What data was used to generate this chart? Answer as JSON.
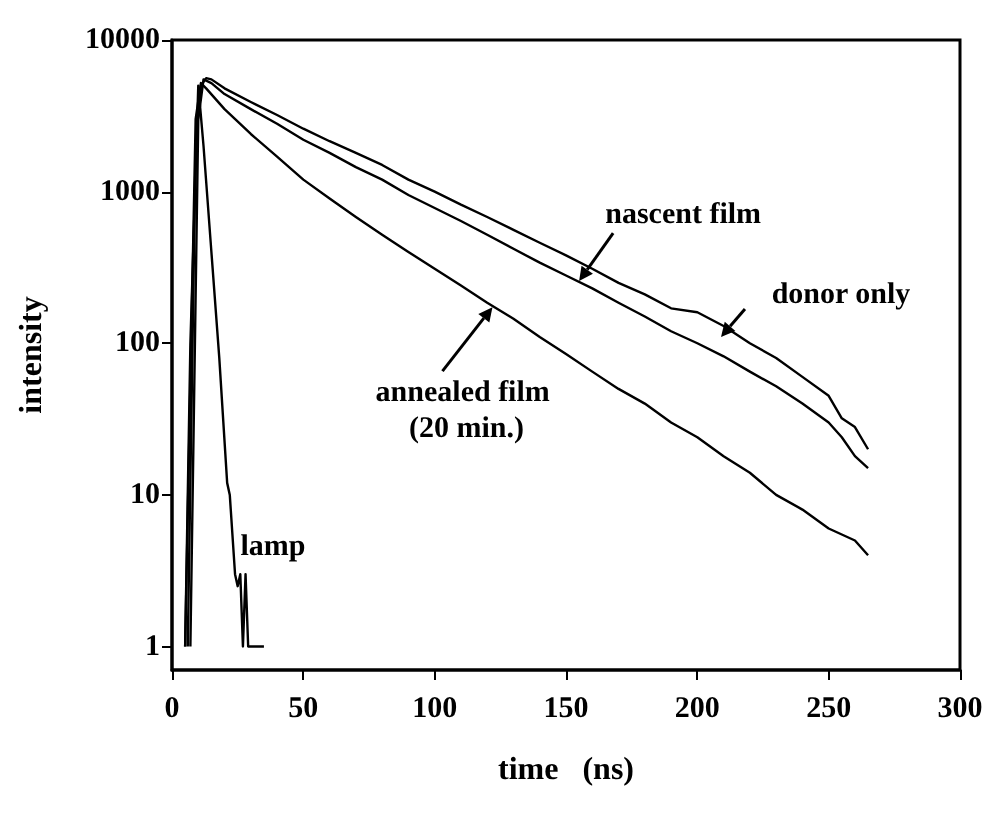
{
  "chart_data": {
    "type": "line",
    "xlabel": "time   (ns)",
    "ylabel": "intensity",
    "log": "y",
    "xlim": [
      0,
      300
    ],
    "xticks": [
      0,
      50,
      100,
      150,
      200,
      250,
      300
    ],
    "ylim": [
      0.7,
      10000
    ],
    "yticks": [
      1,
      10,
      100,
      1000,
      10000
    ],
    "grid": false,
    "marker": "none",
    "line_style": "solid",
    "series": [
      {
        "color": "#000000",
        "x": [
          6,
          9,
          11,
          13,
          15,
          20,
          30,
          40,
          50,
          60,
          70,
          80,
          90,
          100,
          110,
          120,
          130,
          140,
          150,
          160,
          170,
          180,
          190,
          200,
          210,
          220,
          230,
          240,
          250,
          255,
          260,
          265
        ],
        "values": [
          1,
          2000,
          5000,
          5600,
          5500,
          4800,
          3900,
          3200,
          2600,
          2150,
          1800,
          1500,
          1200,
          1000,
          820,
          680,
          560,
          460,
          380,
          310,
          250,
          210,
          170,
          160,
          130,
          100,
          80,
          60,
          45,
          32,
          28,
          20
        ]
      },
      {
        "color": "#000000",
        "x": [
          7,
          10,
          12,
          15,
          20,
          30,
          40,
          50,
          60,
          70,
          80,
          90,
          100,
          110,
          120,
          130,
          140,
          150,
          160,
          170,
          180,
          190,
          200,
          210,
          220,
          230,
          240,
          250,
          255,
          260,
          265
        ],
        "values": [
          1,
          3000,
          5500,
          5200,
          4400,
          3500,
          2800,
          2200,
          1800,
          1450,
          1200,
          950,
          780,
          640,
          520,
          420,
          340,
          280,
          230,
          185,
          150,
          120,
          100,
          82,
          65,
          52,
          40,
          30,
          24,
          18,
          15
        ]
      },
      {
        "color": "#000000",
        "x": [
          5,
          9,
          11,
          13,
          20,
          30,
          40,
          50,
          60,
          70,
          80,
          90,
          100,
          110,
          120,
          130,
          140,
          150,
          160,
          170,
          180,
          190,
          200,
          210,
          220,
          230,
          240,
          250,
          260,
          265
        ],
        "values": [
          1,
          3000,
          5200,
          4800,
          3500,
          2400,
          1700,
          1200,
          900,
          680,
          520,
          400,
          310,
          240,
          185,
          145,
          110,
          85,
          65,
          50,
          40,
          30,
          24,
          18,
          14,
          10,
          8,
          6,
          5,
          4
        ]
      },
      {
        "color": "#000000",
        "x": [
          5,
          7,
          10,
          12,
          15,
          18,
          21,
          22,
          24,
          25,
          26,
          27,
          28,
          29,
          35
        ],
        "values": [
          1,
          100,
          5000,
          2000,
          400,
          80,
          12,
          10,
          3,
          2.5,
          3,
          1,
          3,
          1,
          1
        ]
      }
    ],
    "annotations": [
      {
        "text": "nascent film",
        "x": 155,
        "y": 257
      },
      {
        "text": "donor only",
        "x": 209,
        "y": 110
      },
      {
        "text": "annealed film (20 min.)",
        "x": 122,
        "y": 173
      },
      {
        "text": "lamp",
        "x": 23,
        "y": 4.5
      }
    ]
  }
}
